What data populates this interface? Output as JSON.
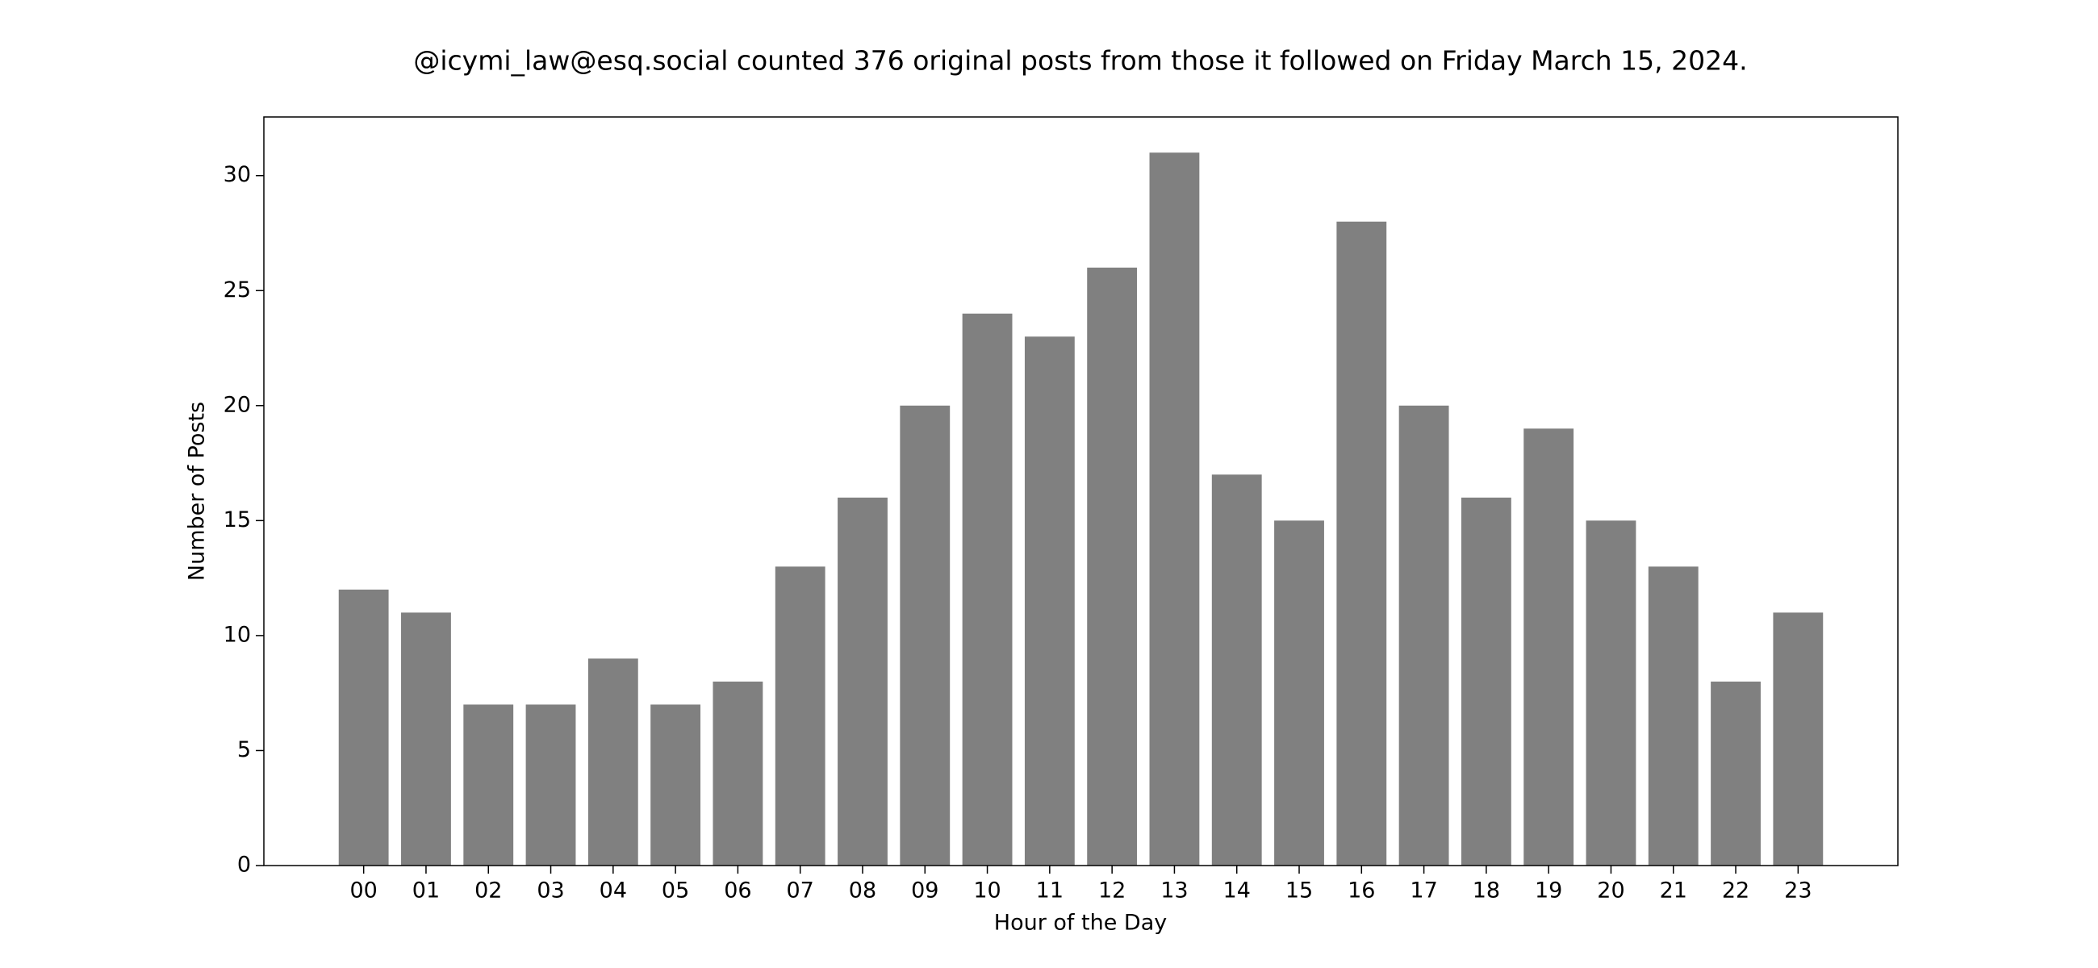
{
  "chart_data": {
    "type": "bar",
    "title": "@icymi_law@esq.social counted 376 original posts from those it followed on Friday March 15, 2024.",
    "x_label": "Hour of the Day",
    "y_label": "Number of Posts",
    "categories": [
      "00",
      "01",
      "02",
      "03",
      "04",
      "05",
      "06",
      "07",
      "08",
      "09",
      "10",
      "11",
      "12",
      "13",
      "14",
      "15",
      "16",
      "17",
      "18",
      "19",
      "20",
      "21",
      "22",
      "23"
    ],
    "values": [
      12,
      11,
      7,
      7,
      9,
      7,
      8,
      13,
      16,
      20,
      24,
      23,
      26,
      31,
      17,
      15,
      28,
      20,
      16,
      19,
      15,
      13,
      8,
      11
    ],
    "color": "#808080",
    "ylim": [
      0,
      32.55
    ],
    "yticks": [
      0,
      5,
      10,
      15,
      20,
      25,
      30
    ],
    "grid": false
  }
}
